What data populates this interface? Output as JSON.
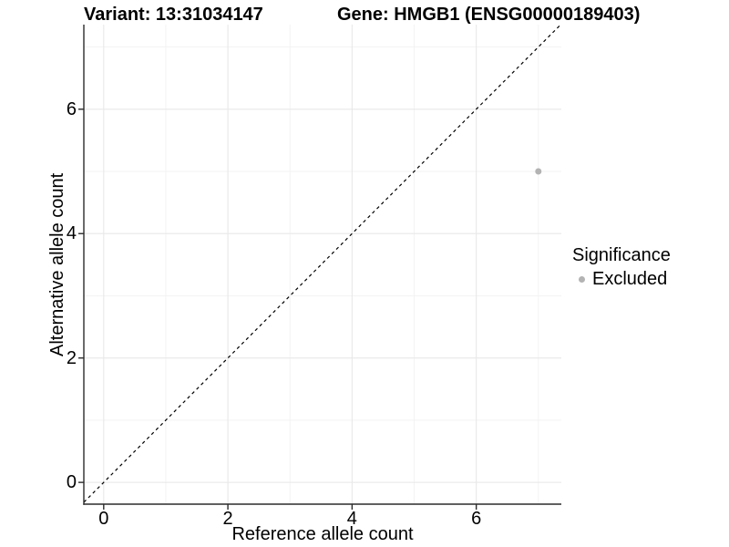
{
  "title": {
    "variant": "Variant: 13:31034147",
    "gene": "Gene: HMGB1 (ENSG00000189403)"
  },
  "axes": {
    "x_label": "Reference allele count",
    "y_label": "Alternative allele count"
  },
  "legend": {
    "title": "Significance",
    "items": [
      {
        "label": "Excluded",
        "color": "#b3b3b3"
      }
    ]
  },
  "chart_data": {
    "type": "scatter",
    "title": "Variant: 13:31034147 | Gene: HMGB1 (ENSG00000189403)",
    "xlabel": "Reference allele count",
    "ylabel": "Alternative allele count",
    "xlim": [
      -0.32,
      7.37
    ],
    "ylim": [
      -0.35,
      7.36
    ],
    "xticks": [
      0,
      2,
      4,
      6
    ],
    "yticks": [
      0,
      2,
      4,
      6
    ],
    "xticks_minor": [
      1,
      3,
      5,
      7
    ],
    "yticks_minor": [
      1,
      3,
      5,
      7
    ],
    "grid": "major+minor",
    "legend_position": "right",
    "reference_line": {
      "type": "identity",
      "slope": 1,
      "intercept": 0,
      "style": "dashed",
      "color": "#000000"
    },
    "series": [
      {
        "name": "Excluded",
        "color": "#b3b3b3",
        "points": [
          {
            "x": 7,
            "y": 5
          }
        ]
      }
    ],
    "colors": {
      "background": "#ffffff",
      "grid_major": "#e8e8e8",
      "grid_minor": "#f3f3f3",
      "axis": "#2b2b2b",
      "text": "#000000"
    }
  }
}
